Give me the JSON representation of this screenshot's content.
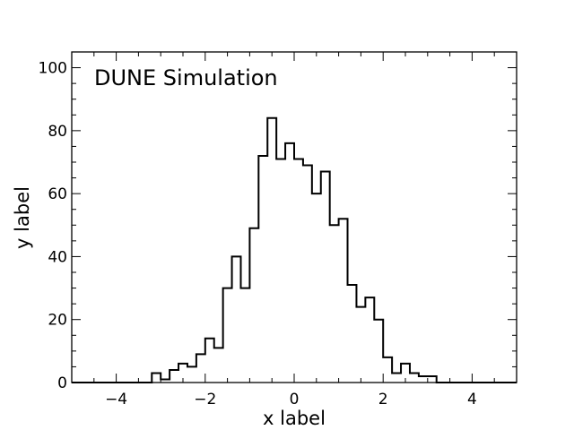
{
  "chart_data": {
    "type": "histogram",
    "annotation": "DUNE Simulation",
    "xlabel": "x label",
    "ylabel": "y label",
    "xlim": [
      -5,
      5
    ],
    "ylim": [
      0,
      105
    ],
    "bin_edges": [
      -5.0,
      -4.8,
      -4.6,
      -4.4,
      -4.2,
      -4.0,
      -3.8,
      -3.6,
      -3.4,
      -3.2,
      -3.0,
      -2.8,
      -2.6,
      -2.4,
      -2.2,
      -2.0,
      -1.8,
      -1.6,
      -1.4,
      -1.2,
      -1.0,
      -0.8,
      -0.6,
      -0.4,
      -0.2,
      0.0,
      0.2,
      0.4,
      0.6,
      0.8,
      1.0,
      1.2,
      1.4,
      1.6,
      1.8,
      2.0,
      2.2,
      2.4,
      2.6,
      2.8,
      3.0,
      3.2,
      3.4,
      3.6,
      3.8,
      4.0,
      4.2,
      4.4,
      4.6,
      4.8,
      5.0
    ],
    "counts": [
      0,
      0,
      0,
      0,
      0,
      0,
      0,
      0,
      0,
      3,
      1,
      4,
      6,
      5,
      9,
      14,
      11,
      30,
      40,
      30,
      49,
      72,
      84,
      71,
      76,
      71,
      69,
      60,
      67,
      50,
      52,
      31,
      24,
      27,
      20,
      8,
      3,
      6,
      3,
      2,
      2,
      0,
      0,
      0,
      0,
      0,
      0,
      0,
      0,
      0
    ],
    "x_ticks": [
      -4,
      -2,
      0,
      2,
      4
    ],
    "x_tick_labels": [
      "−4",
      "−2",
      "0",
      "2",
      "4"
    ],
    "y_ticks": [
      0,
      20,
      40,
      60,
      80,
      100
    ],
    "y_tick_labels": [
      "0",
      "20",
      "40",
      "60",
      "80",
      "100"
    ],
    "grid": false,
    "line_color": "#000000"
  }
}
